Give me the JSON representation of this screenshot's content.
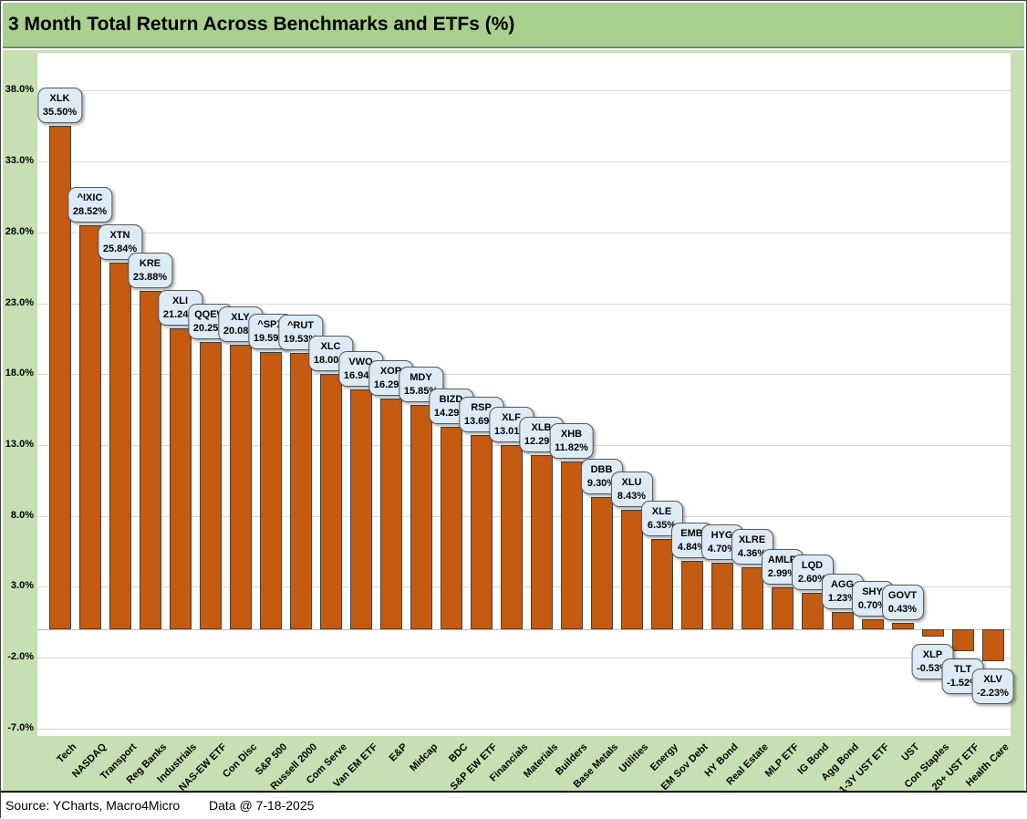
{
  "title": "3 Month Total Return Across Benchmarks and ETFs (%)",
  "footer": {
    "source": "Source: YCharts, Macro4Micro",
    "data_date": "Data @ 7-18-2025"
  },
  "colors": {
    "title_band": "#A9D08E",
    "chart_background": "#C6E0B4",
    "plot_background": "#FFFFFF",
    "bar_fill": "#C55A11",
    "bar_border": "#454138",
    "callout_fill": "#DDEBF7",
    "callout_border": "#595959",
    "gridline": "#D9D9D9"
  },
  "chart_data": {
    "type": "bar",
    "title": "3 Month Total Return Across Benchmarks and ETFs (%)",
    "xlabel": "",
    "ylabel": "",
    "ylim": [
      -7.0,
      38.0
    ],
    "ytick_step": 5.0,
    "yticks": [
      38.0,
      33.0,
      28.0,
      23.0,
      18.0,
      13.0,
      8.0,
      3.0,
      -2.0,
      -7.0
    ],
    "ytick_labels": [
      "38.0%",
      "33.0%",
      "28.0%",
      "23.0%",
      "18.0%",
      "13.0%",
      "8.0%",
      "3.0%",
      "-2.0%",
      "-7.0%"
    ],
    "grid": true,
    "legend": false,
    "value_label_format": "ticker + percent, two-line callout above bar (below bar when negative)",
    "points": [
      {
        "category": "Tech",
        "ticker": "XLK",
        "value": 35.5
      },
      {
        "category": "NASDAQ",
        "ticker": "^IXIC",
        "value": 28.52
      },
      {
        "category": "Transport",
        "ticker": "XTN",
        "value": 25.84
      },
      {
        "category": "Reg Banks",
        "ticker": "KRE",
        "value": 23.88
      },
      {
        "category": "Industrials",
        "ticker": "XLI",
        "value": 21.24
      },
      {
        "category": "NAS-EW ETF",
        "ticker": "QQEW",
        "value": 20.25
      },
      {
        "category": "Con Disc",
        "ticker": "XLY",
        "value": 20.08
      },
      {
        "category": "S&P 500",
        "ticker": "^SPX",
        "value": 19.59
      },
      {
        "category": "Russell 2000",
        "ticker": "^RUT",
        "value": 19.53
      },
      {
        "category": "Com Serve",
        "ticker": "XLC",
        "value": 18.0
      },
      {
        "category": "Van EM ETF",
        "ticker": "VWO",
        "value": 16.94
      },
      {
        "category": "E&P",
        "ticker": "XOP",
        "value": 16.29
      },
      {
        "category": "Midcap",
        "ticker": "MDY",
        "value": 15.85
      },
      {
        "category": "BDC",
        "ticker": "BIZD",
        "value": 14.29
      },
      {
        "category": "S&P EW ETF",
        "ticker": "RSP",
        "value": 13.69
      },
      {
        "category": "Financials",
        "ticker": "XLF",
        "value": 13.01
      },
      {
        "category": "Materials",
        "ticker": "XLB",
        "value": 12.29
      },
      {
        "category": "Builders",
        "ticker": "XHB",
        "value": 11.82
      },
      {
        "category": "Base Metals",
        "ticker": "DBB",
        "value": 9.3
      },
      {
        "category": "Utilities",
        "ticker": "XLU",
        "value": 8.43
      },
      {
        "category": "Energy",
        "ticker": "XLE",
        "value": 6.35
      },
      {
        "category": "EM Sov Debt",
        "ticker": "EMB",
        "value": 4.84
      },
      {
        "category": "HY Bond",
        "ticker": "HYG",
        "value": 4.7
      },
      {
        "category": "Real Estate",
        "ticker": "XLRE",
        "value": 4.36
      },
      {
        "category": "MLP ETF",
        "ticker": "AMLP",
        "value": 2.99
      },
      {
        "category": "IG Bond",
        "ticker": "LQD",
        "value": 2.6
      },
      {
        "category": "Agg Bond",
        "ticker": "AGG",
        "value": 1.23
      },
      {
        "category": "1-3Y UST ETF",
        "ticker": "SHY",
        "value": 0.7
      },
      {
        "category": "UST",
        "ticker": "GOVT",
        "value": 0.43
      },
      {
        "category": "Con Staples",
        "ticker": "XLP",
        "value": -0.53
      },
      {
        "category": "20+ UST ETF",
        "ticker": "TLT",
        "value": -1.52
      },
      {
        "category": "Health Care",
        "ticker": "XLV",
        "value": -2.23
      }
    ]
  }
}
